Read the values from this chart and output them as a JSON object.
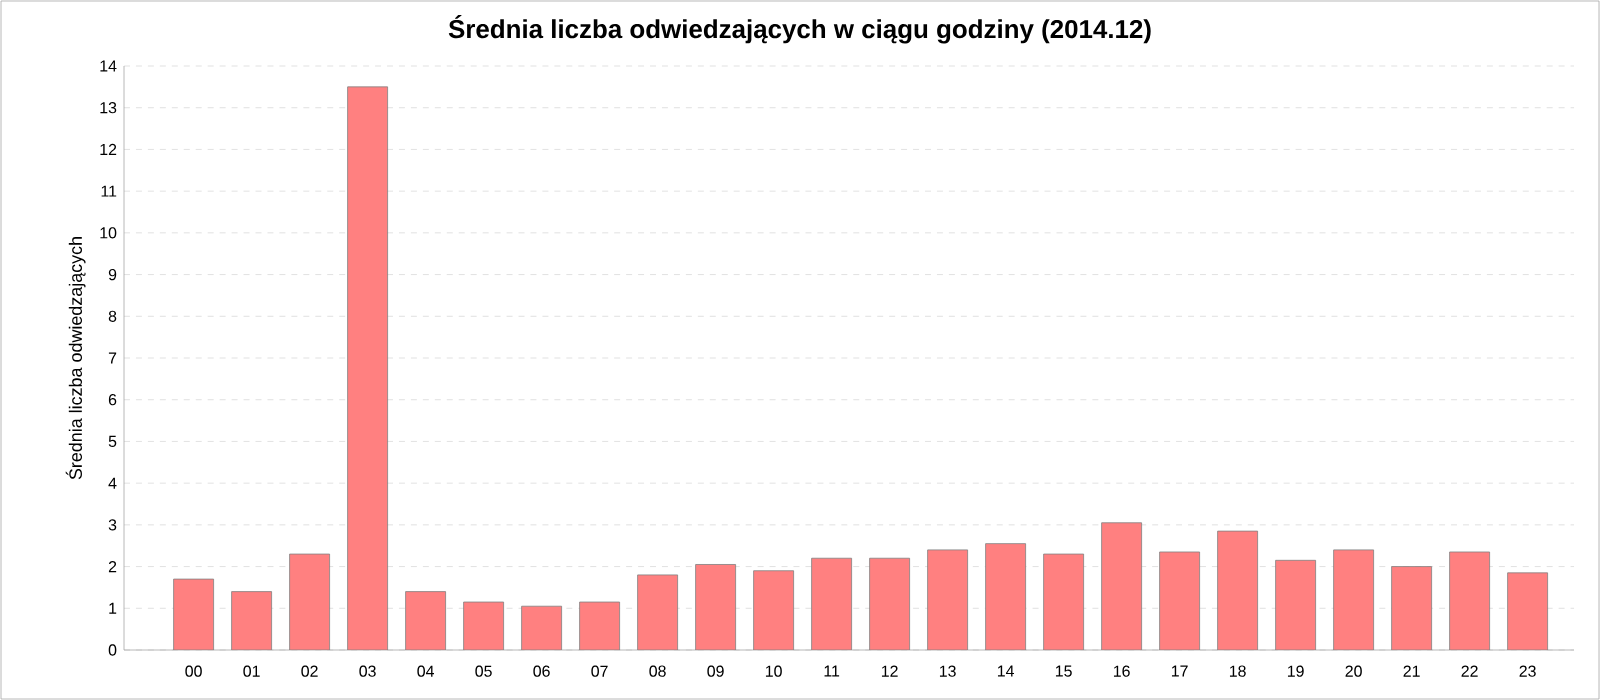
{
  "chart_data": {
    "type": "bar",
    "title": "Średnia liczba odwiedzających w ciągu godziny (2014.12)",
    "ylabel": "Średnia liczba odwiedzających",
    "categories": [
      "00",
      "01",
      "02",
      "03",
      "04",
      "05",
      "06",
      "07",
      "08",
      "09",
      "10",
      "11",
      "12",
      "13",
      "14",
      "15",
      "16",
      "17",
      "18",
      "19",
      "20",
      "21",
      "22",
      "23"
    ],
    "values": [
      1.7,
      1.4,
      2.3,
      13.5,
      1.4,
      1.15,
      1.05,
      1.15,
      1.8,
      2.05,
      1.9,
      2.2,
      2.2,
      2.4,
      2.55,
      2.3,
      3.05,
      2.35,
      2.85,
      2.15,
      2.4,
      2.0,
      2.35,
      1.85
    ],
    "color": "#ff8080",
    "ylim": [
      0,
      14
    ],
    "yticks": [
      0,
      1,
      2,
      3,
      4,
      5,
      6,
      7,
      8,
      9,
      10,
      11,
      12,
      13,
      14
    ],
    "grid": "y"
  }
}
